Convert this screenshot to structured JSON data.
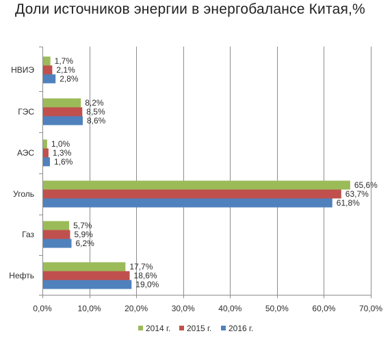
{
  "chart_data": {
    "type": "bar",
    "orientation": "horizontal",
    "title": "Доли источников энергии в энергобалансе Китая,%",
    "categories": [
      "НВИЭ",
      "ГЭС",
      "АЭС",
      "Уголь",
      "Газ",
      "Нефть"
    ],
    "series": [
      {
        "name": "2014 г.",
        "color": "#9BBB59",
        "values": [
          1.7,
          8.2,
          1.0,
          65.6,
          5.7,
          17.7
        ],
        "labels": [
          "1,7%",
          "8,2%",
          "1,0%",
          "65,6%",
          "5,7%",
          "17,7%"
        ]
      },
      {
        "name": "2015 г.",
        "color": "#C0504D",
        "values": [
          2.1,
          8.5,
          1.3,
          63.7,
          5.9,
          18.6
        ],
        "labels": [
          "2,1%",
          "8,5%",
          "1,3%",
          "63,7%",
          "5,9%",
          "18,6%"
        ]
      },
      {
        "name": "2016 г.",
        "color": "#4F81BD",
        "values": [
          2.8,
          8.6,
          1.6,
          61.8,
          6.2,
          19.0
        ],
        "labels": [
          "2,8%",
          "8,6%",
          "1,6%",
          "61,8%",
          "6,2%",
          "19,0%"
        ]
      }
    ],
    "xlim": [
      0,
      70
    ],
    "xticks": [
      0,
      10,
      20,
      30,
      40,
      50,
      60,
      70
    ],
    "xtick_labels": [
      "0,0%",
      "10,0%",
      "20,0%",
      "30,0%",
      "40,0%",
      "50,0%",
      "60,0%",
      "70,0%"
    ],
    "xlabel": "",
    "ylabel": "",
    "grid": "vertical",
    "legend_position": "bottom"
  }
}
